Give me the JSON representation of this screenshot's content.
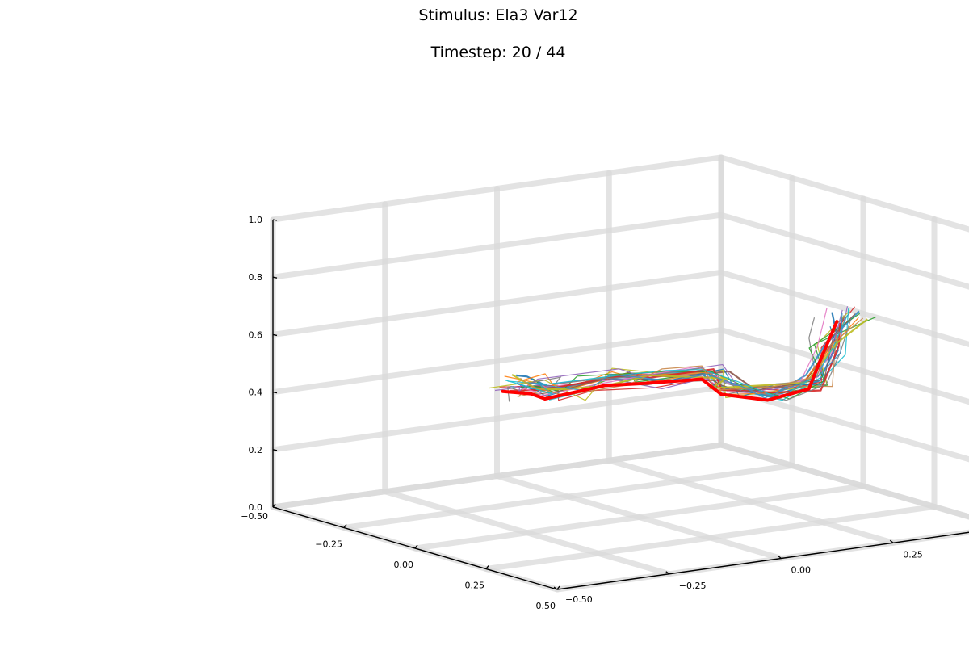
{
  "title": "Stimulus: Ela3 Var12",
  "subtitle": "Timestep: 20 / 44",
  "chart_data": {
    "type": "line",
    "projection": "3d",
    "title": "Stimulus: Ela3 Var12",
    "subtitle": "Timestep: 20 / 44",
    "xlabel": "",
    "ylabel": "",
    "zlabel": "",
    "xlim": [
      -0.5,
      0.5
    ],
    "ylim": [
      -0.5,
      0.5
    ],
    "zlim": [
      0.0,
      1.0
    ],
    "grid": true,
    "legend": "none",
    "x_ticks": [
      "−0.50",
      "−0.25",
      "0.00",
      "0.25",
      "0.50"
    ],
    "y_ticks": [
      "−0.50",
      "−0.25",
      "0.00",
      "0.25",
      "0.50"
    ],
    "z_ticks": [
      "0.0",
      "0.2",
      "0.4",
      "0.6",
      "0.8",
      "1.0"
    ],
    "x_tick_values": [
      -0.5,
      -0.25,
      0.0,
      0.25,
      0.5
    ],
    "y_tick_values": [
      -0.5,
      -0.25,
      0.0,
      0.25,
      0.5
    ],
    "z_tick_values": [
      0.0,
      0.2,
      0.4,
      0.6,
      0.8,
      1.0
    ],
    "highlight": {
      "color": "#ff0000",
      "points": [
        [
          -0.48,
          0.0,
          0.3
        ],
        [
          -0.38,
          0.0,
          0.32
        ],
        [
          -0.3,
          -0.02,
          0.33
        ],
        [
          -0.2,
          0.05,
          0.39
        ],
        [
          -0.1,
          0.08,
          0.42
        ],
        [
          0.0,
          0.14,
          0.45
        ],
        [
          0.1,
          0.12,
          0.43
        ],
        [
          0.2,
          0.16,
          0.43
        ],
        [
          0.25,
          0.22,
          0.47
        ],
        [
          0.25,
          0.25,
          0.58
        ],
        [
          0.27,
          0.27,
          0.7
        ]
      ]
    },
    "trajectory_colors": [
      "#1f77b4",
      "#ff7f0e",
      "#2ca02c",
      "#d62728",
      "#9467bd",
      "#8c564b",
      "#e377c2",
      "#7f7f7f",
      "#bcbd22",
      "#17becf",
      "#3a8fc4",
      "#c9874a"
    ],
    "trajectory_count": 24,
    "trajectory_spread": 0.04,
    "grid_color": "#d9d9d9",
    "axis_color": "#000000"
  }
}
